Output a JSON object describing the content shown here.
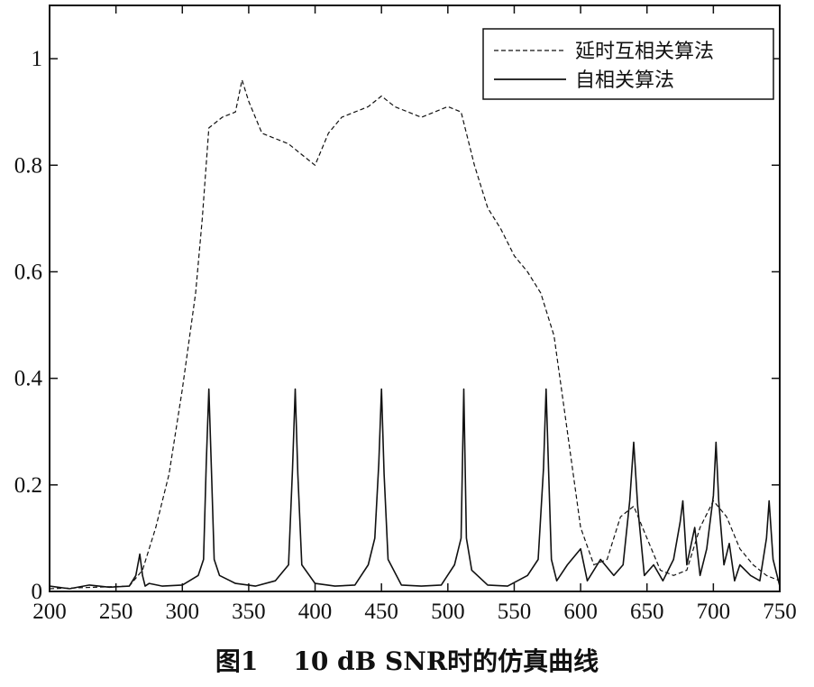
{
  "caption": "图1    10 dB SNR时的仿真曲线",
  "colors": {
    "axis": "#111111",
    "series": "#111111",
    "background": "#ffffff"
  },
  "chart_data": {
    "type": "line",
    "title": "",
    "xlabel": "",
    "ylabel": "",
    "xlim": [
      200,
      750
    ],
    "ylim": [
      0,
      1.1
    ],
    "grid": false,
    "legend_position": "top-right",
    "x_ticks": [
      200,
      250,
      300,
      350,
      400,
      450,
      500,
      550,
      600,
      650,
      700,
      750
    ],
    "x_tick_labels": [
      "200",
      "250",
      "300",
      "350",
      "400",
      "450",
      "500",
      "550",
      "600",
      "650",
      "700",
      "750"
    ],
    "y_ticks": [
      0,
      0.2,
      0.4,
      0.6,
      0.8,
      1
    ],
    "y_tick_labels": [
      "0",
      "0.2",
      "0.4",
      "0.6",
      "0.8",
      "1"
    ],
    "series": [
      {
        "name": "延时互相关算法",
        "style": "dashed",
        "x": [
          200,
          260,
          270,
          280,
          290,
          300,
          310,
          315,
          320,
          330,
          340,
          345,
          350,
          360,
          370,
          380,
          390,
          400,
          410,
          420,
          430,
          440,
          450,
          460,
          470,
          480,
          490,
          500,
          510,
          520,
          530,
          540,
          550,
          560,
          570,
          580,
          590,
          600,
          610,
          620,
          630,
          640,
          650,
          660,
          670,
          680,
          690,
          700,
          710,
          720,
          730,
          740,
          750
        ],
        "y": [
          0.005,
          0.01,
          0.04,
          0.12,
          0.22,
          0.38,
          0.56,
          0.7,
          0.87,
          0.89,
          0.9,
          0.96,
          0.92,
          0.86,
          0.85,
          0.84,
          0.82,
          0.8,
          0.86,
          0.89,
          0.9,
          0.91,
          0.93,
          0.91,
          0.9,
          0.89,
          0.9,
          0.91,
          0.9,
          0.8,
          0.72,
          0.68,
          0.63,
          0.6,
          0.56,
          0.48,
          0.3,
          0.12,
          0.05,
          0.06,
          0.14,
          0.16,
          0.1,
          0.04,
          0.03,
          0.04,
          0.12,
          0.17,
          0.14,
          0.08,
          0.05,
          0.03,
          0.02
        ]
      },
      {
        "name": "自相关算法",
        "style": "solid",
        "x": [
          200,
          215,
          230,
          245,
          260,
          265,
          268,
          270,
          272,
          275,
          285,
          300,
          312,
          316,
          318,
          320,
          322,
          324,
          328,
          340,
          355,
          370,
          380,
          383,
          385,
          387,
          390,
          400,
          415,
          430,
          440,
          445,
          448,
          450,
          452,
          455,
          465,
          480,
          495,
          505,
          510,
          512,
          514,
          518,
          530,
          545,
          560,
          568,
          572,
          574,
          576,
          578,
          582,
          590,
          600,
          605,
          615,
          625,
          632,
          637,
          640,
          643,
          648,
          655,
          662,
          670,
          675,
          677,
          680,
          686,
          690,
          695,
          700,
          702,
          704,
          708,
          712,
          716,
          720,
          728,
          735,
          740,
          742,
          745,
          750
        ],
        "y": [
          0.01,
          0.005,
          0.012,
          0.008,
          0.01,
          0.03,
          0.07,
          0.03,
          0.01,
          0.015,
          0.01,
          0.012,
          0.03,
          0.06,
          0.24,
          0.38,
          0.22,
          0.06,
          0.03,
          0.015,
          0.01,
          0.02,
          0.05,
          0.23,
          0.38,
          0.22,
          0.05,
          0.015,
          0.01,
          0.012,
          0.05,
          0.1,
          0.24,
          0.38,
          0.22,
          0.06,
          0.012,
          0.01,
          0.012,
          0.05,
          0.1,
          0.38,
          0.1,
          0.04,
          0.012,
          0.01,
          0.03,
          0.06,
          0.23,
          0.38,
          0.22,
          0.06,
          0.02,
          0.05,
          0.08,
          0.02,
          0.06,
          0.03,
          0.05,
          0.17,
          0.28,
          0.16,
          0.03,
          0.05,
          0.02,
          0.06,
          0.13,
          0.17,
          0.05,
          0.12,
          0.03,
          0.08,
          0.18,
          0.28,
          0.17,
          0.05,
          0.09,
          0.02,
          0.05,
          0.03,
          0.02,
          0.1,
          0.17,
          0.06,
          0.01
        ]
      }
    ]
  }
}
